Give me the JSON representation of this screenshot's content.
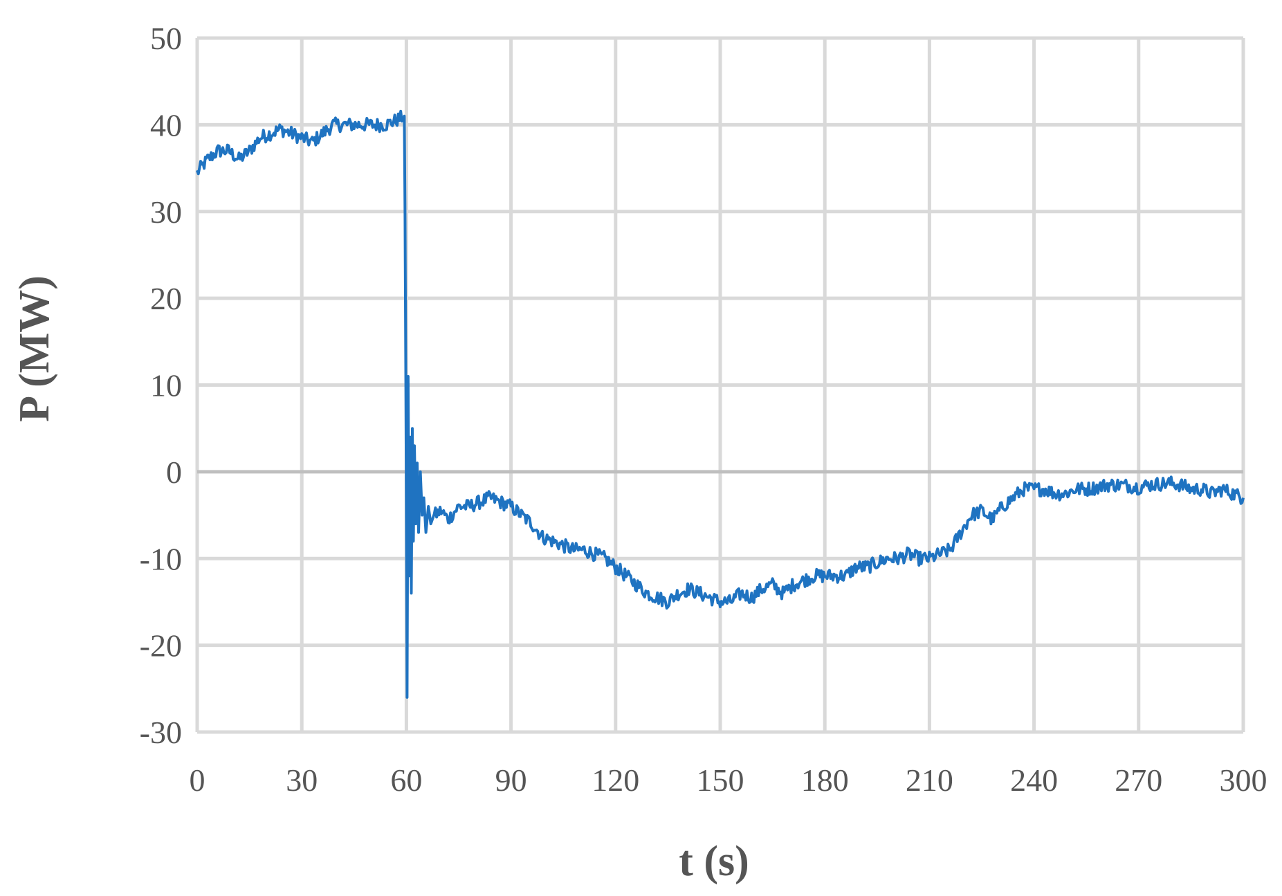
{
  "chart_data": {
    "type": "line",
    "title": "",
    "xlabel": "t (s)",
    "ylabel": "P (MW)",
    "xlim": [
      0,
      300
    ],
    "ylim": [
      -30,
      50
    ],
    "xticks": [
      0,
      30,
      60,
      90,
      120,
      150,
      180,
      210,
      240,
      270,
      300
    ],
    "yticks": [
      50,
      40,
      30,
      20,
      10,
      0,
      -10,
      -20,
      -30
    ],
    "grid": true,
    "legend": "none",
    "colors": {
      "series": "#1f73c1",
      "grid": "#d9d9d9",
      "text": "#555555"
    },
    "series": [
      {
        "x": [
          0,
          3,
          6,
          9,
          12,
          15,
          18,
          21,
          24,
          27,
          30,
          33,
          36,
          39,
          42,
          45,
          48,
          51,
          54,
          57,
          59.4,
          59.6,
          59.9,
          60.2,
          60.5,
          60.8,
          61.1,
          61.4,
          61.7,
          62.0,
          62.3,
          62.7,
          63.1,
          63.5,
          64.0,
          64.5,
          65.0,
          65.6,
          66.3,
          67.0,
          68,
          70,
          72,
          75,
          78,
          81,
          84,
          87,
          90,
          93,
          96,
          99,
          102,
          105,
          108,
          111,
          114,
          117,
          120,
          123,
          126,
          129,
          132,
          135,
          138,
          141,
          144,
          147,
          150,
          153,
          156,
          159,
          162,
          165,
          168,
          171,
          174,
          177,
          180,
          183,
          186,
          189,
          192,
          195,
          198,
          201,
          204,
          207,
          210,
          213,
          216,
          219,
          222,
          225,
          228,
          231,
          234,
          237,
          240,
          243,
          246,
          249,
          252,
          255,
          258,
          261,
          264,
          267,
          270,
          273,
          276,
          279,
          282,
          285,
          288,
          291,
          294,
          297,
          300
        ],
        "y": [
          34.5,
          36,
          37,
          37,
          36,
          37,
          38.5,
          39,
          39.5,
          39,
          38.5,
          38,
          39,
          40,
          40,
          40,
          40,
          40,
          40,
          40.5,
          41,
          30,
          5,
          -26,
          11,
          -12,
          4,
          -14,
          5,
          -8,
          3,
          -6,
          1,
          -7,
          0,
          -5,
          -3,
          -7,
          -4,
          -6,
          -5,
          -4.5,
          -5.5,
          -4,
          -4,
          -3.5,
          -3,
          -3.5,
          -4,
          -5,
          -6,
          -7.5,
          -8,
          -8.5,
          -9,
          -9,
          -9.5,
          -10,
          -11,
          -12,
          -13,
          -14,
          -14.5,
          -15,
          -14,
          -13.5,
          -14,
          -14.5,
          -15,
          -15,
          -14,
          -14.5,
          -13.5,
          -13,
          -14,
          -13,
          -12.5,
          -12,
          -12,
          -12,
          -12,
          -11,
          -11,
          -10.5,
          -10,
          -10,
          -9.5,
          -10,
          -10,
          -9.5,
          -9,
          -7,
          -5,
          -4.5,
          -5.5,
          -4,
          -3,
          -2,
          -2,
          -2,
          -2.5,
          -2.5,
          -2,
          -2,
          -1.8,
          -1.5,
          -1.5,
          -1.6,
          -1.8,
          -1.5,
          -1.4,
          -1.3,
          -1.5,
          -2,
          -2,
          -2.5,
          -2,
          -2.5,
          -3
        ]
      }
    ]
  }
}
